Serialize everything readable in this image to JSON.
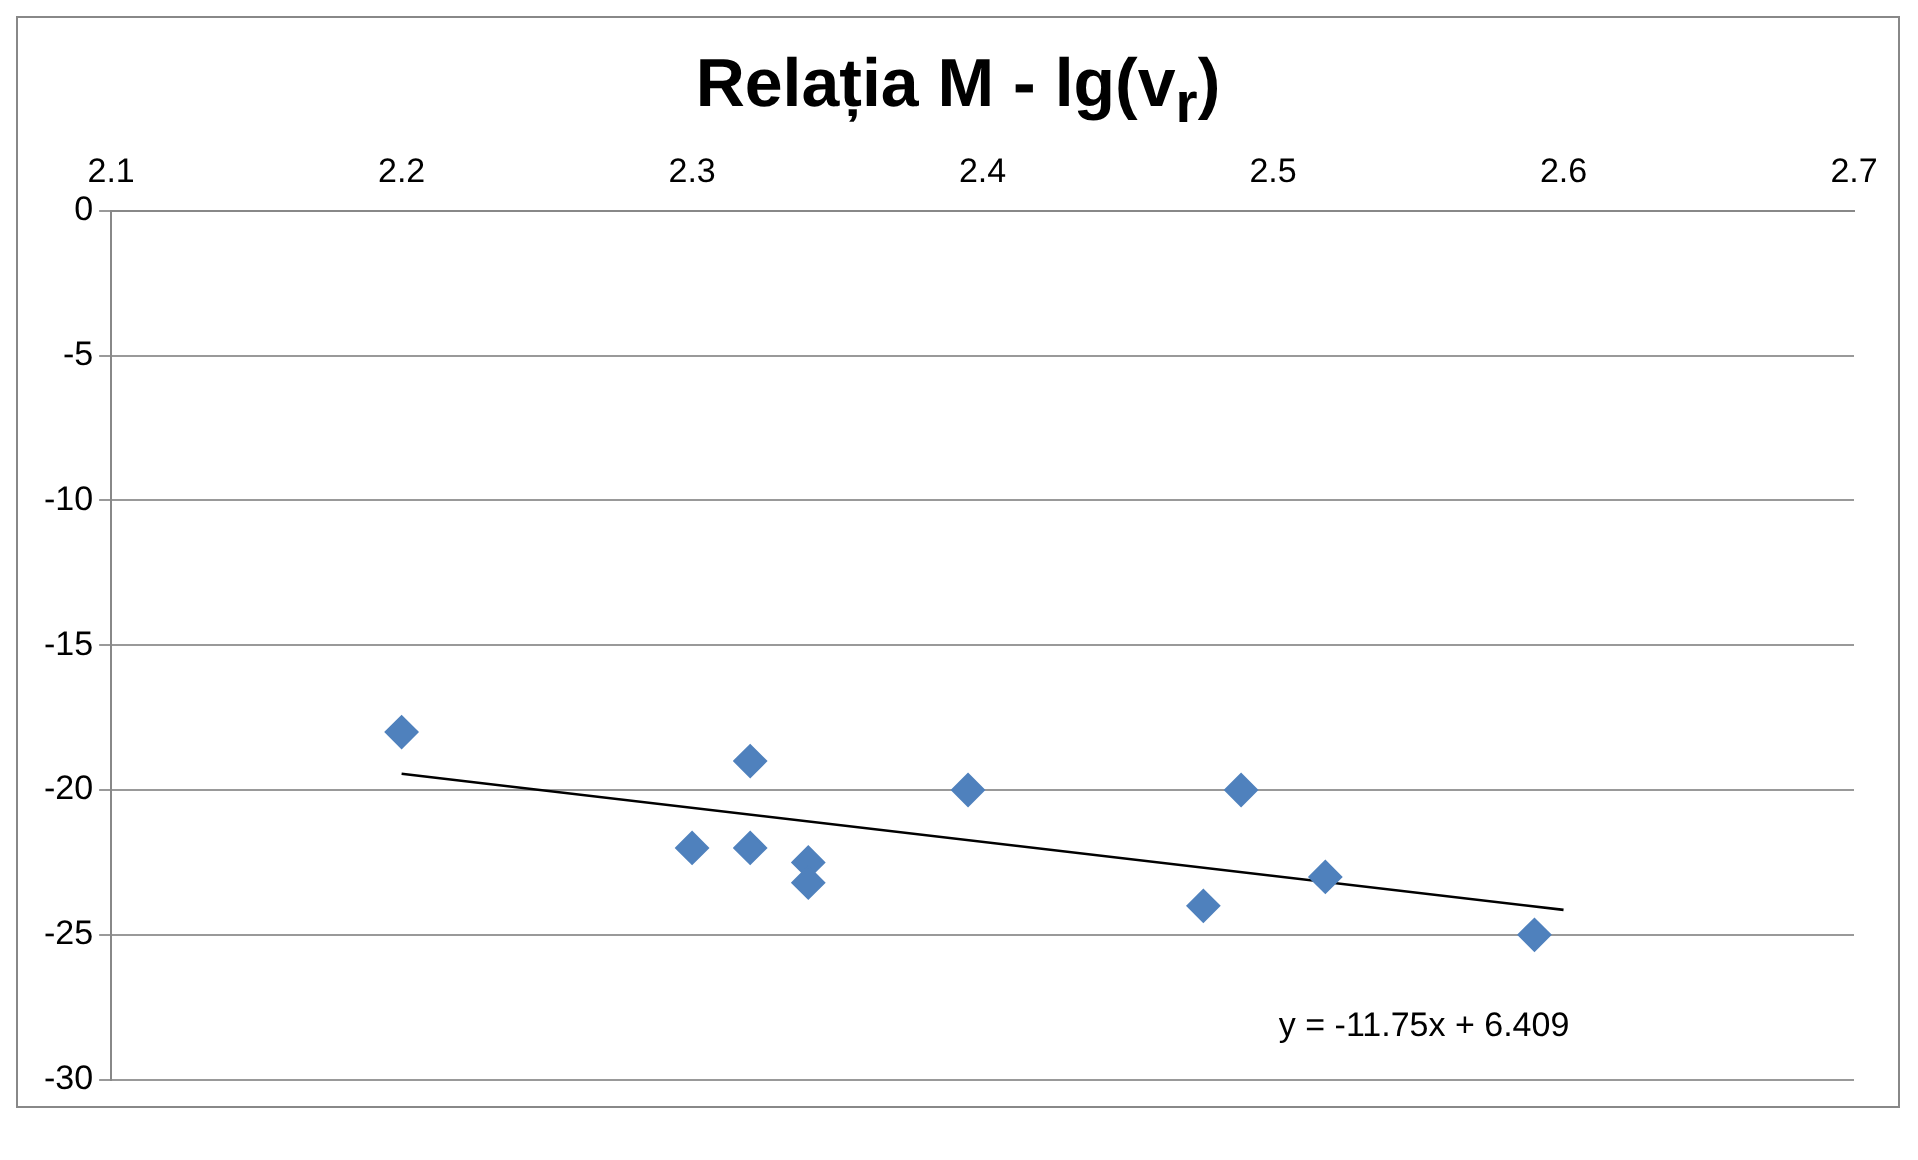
{
  "chart_data": {
    "type": "scatter",
    "title": "Relația M - lg(v$_{r}$)",
    "xlim": [
      2.1,
      2.7
    ],
    "xticks": [
      2.1,
      2.2,
      2.3,
      2.4,
      2.5,
      2.6,
      2.7
    ],
    "ylim": [
      -30,
      0
    ],
    "yticks": [
      -30,
      -25,
      -20,
      -15,
      -10,
      -5,
      0
    ],
    "grid": "y",
    "marker": "diamond",
    "series": [
      {
        "color": "#4f81bd",
        "x": [
          2.2,
          2.3,
          2.32,
          2.32,
          2.34,
          2.34,
          2.395,
          2.476,
          2.489,
          2.518,
          2.59
        ],
        "values": [
          -18,
          -22,
          -19,
          -22,
          -22.5,
          -23.2,
          -20,
          -24,
          -20,
          -23,
          -25
        ]
      },
      {
        "type": "line",
        "color": "#000000",
        "marker": "none",
        "x": [
          2.2,
          2.6
        ],
        "values": [
          -19.44,
          -24.14
        ]
      }
    ],
    "annotations": [
      "y = -11.75x + 6.409"
    ]
  }
}
